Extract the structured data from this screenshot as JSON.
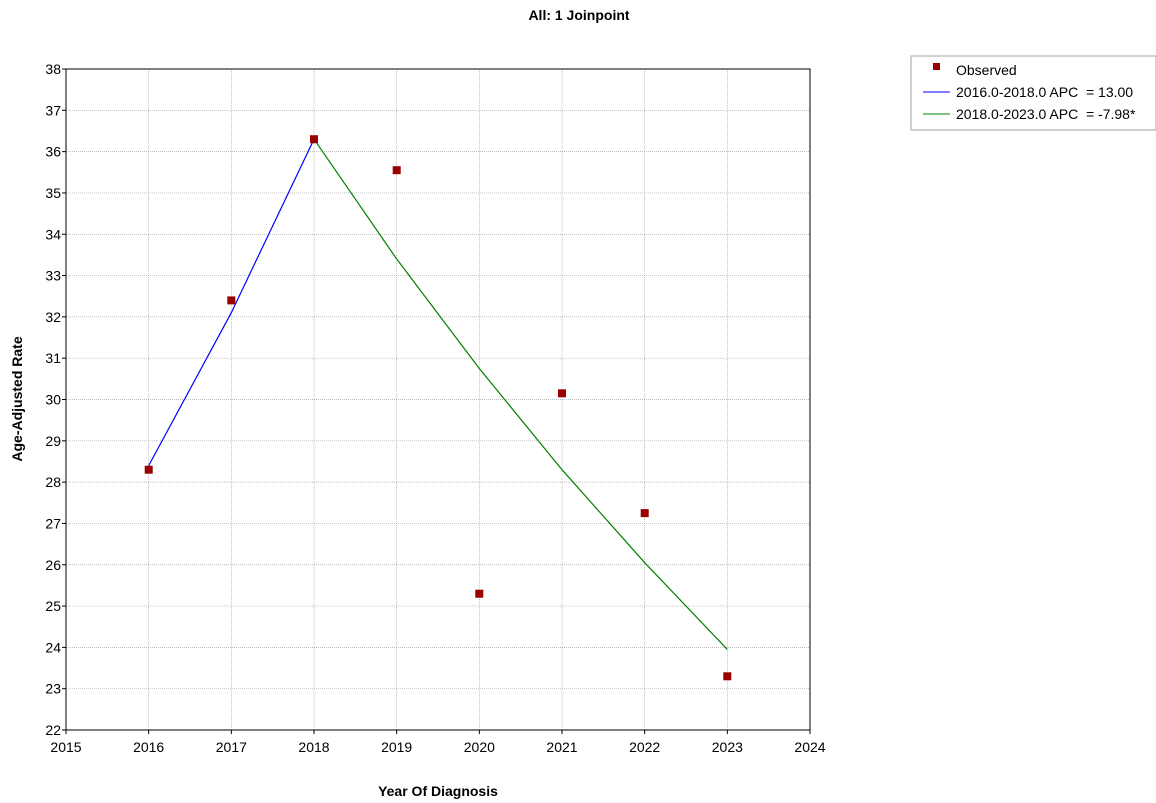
{
  "chart_data": {
    "type": "scatter",
    "title": "All: 1 Joinpoint",
    "xlabel": "Year Of Diagnosis",
    "ylabel": "Age-Adjusted Rate",
    "xlim": [
      2015,
      2024
    ],
    "ylim": [
      22,
      38
    ],
    "x_ticks": [
      2015,
      2016,
      2017,
      2018,
      2019,
      2020,
      2021,
      2022,
      2023,
      2024
    ],
    "y_ticks": [
      22,
      23,
      24,
      25,
      26,
      27,
      28,
      29,
      30,
      31,
      32,
      33,
      34,
      35,
      36,
      37,
      38
    ],
    "grid": true,
    "legend_position": "top-right outside",
    "observed": {
      "name": "Observed",
      "color": "#990000",
      "x": [
        2016,
        2017,
        2018,
        2019,
        2020,
        2021,
        2022,
        2023
      ],
      "y": [
        28.3,
        32.4,
        36.3,
        35.55,
        25.3,
        30.15,
        27.25,
        23.3
      ]
    },
    "segments": [
      {
        "name": "2016.0-2018.0 APC  = 13.00",
        "color": "#0000ff",
        "x": [
          2016,
          2017,
          2018
        ],
        "y": [
          28.4,
          32.1,
          36.3
        ]
      },
      {
        "name": "2018.0-2023.0 APC  = -7.98*",
        "color": "#008000",
        "x": [
          2018,
          2019,
          2020,
          2021,
          2022,
          2023
        ],
        "y": [
          36.3,
          33.4,
          30.75,
          28.3,
          26.05,
          23.95
        ]
      }
    ]
  }
}
